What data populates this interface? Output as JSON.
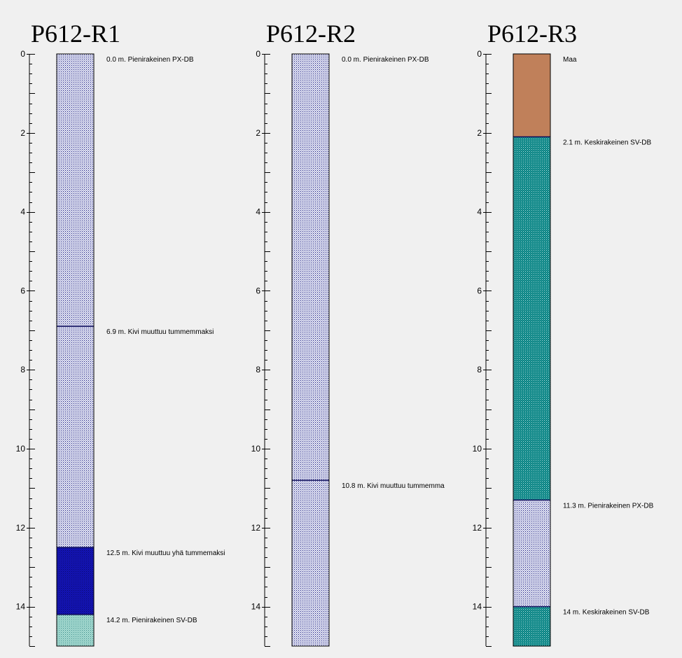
{
  "chart_data": {
    "type": "borehole_log",
    "unit": "m.",
    "depth_ticks": [
      0,
      2,
      4,
      6,
      8,
      10,
      12,
      14
    ],
    "depth_range": [
      0,
      15
    ],
    "minor_tick_step": 0.25,
    "patterns": {
      "px": {
        "base": "#e4e6f4",
        "dot": "#1a1a80"
      },
      "dark": {
        "base": "#1414b4",
        "dot": "#0a0a6e"
      },
      "sv_light": {
        "base": "#a8dcd2",
        "dot": "#3a8a8a"
      },
      "teal": {
        "base": "#008080",
        "dot": "#b8e0e0"
      },
      "soil": {
        "base": "#c0805a",
        "dot": "#c0805a"
      }
    },
    "logs": [
      {
        "title": "P612-R1",
        "bottom": 15,
        "layers": [
          {
            "top": 0,
            "pattern": "px",
            "label": "0.0 m. Pienirakeinen PX-DB"
          },
          {
            "top": 6.9,
            "pattern": "px",
            "label": "6.9 m.  Kivi muuttuu tummemmaksi"
          },
          {
            "top": 12.5,
            "pattern": "dark",
            "label": "12.5 m. Kivi muuttuu yhä tummemaksi"
          },
          {
            "top": 14.2,
            "pattern": "sv_light",
            "label": "14.2 m. Pienirakeinen SV-DB"
          }
        ]
      },
      {
        "title": "P612-R2",
        "bottom": 15,
        "layers": [
          {
            "top": 0,
            "pattern": "px",
            "label": "0.0 m. Pienirakeinen PX-DB"
          },
          {
            "top": 10.8,
            "pattern": "px",
            "label": "10.8 m.  Kivi muuttuu tummemma"
          }
        ]
      },
      {
        "title": "P612-R3",
        "bottom": 15,
        "layers": [
          {
            "top": 0,
            "pattern": "soil",
            "label": "Maa"
          },
          {
            "top": 2.1,
            "pattern": "teal",
            "label": "2.1 m. Keskirakeinen SV-DB"
          },
          {
            "top": 11.3,
            "pattern": "px",
            "label": "11.3 m. Pienirakeinen PX-DB"
          },
          {
            "top": 14,
            "pattern": "teal",
            "label": "14 m. Keskirakeinen SV-DB"
          }
        ]
      }
    ]
  }
}
